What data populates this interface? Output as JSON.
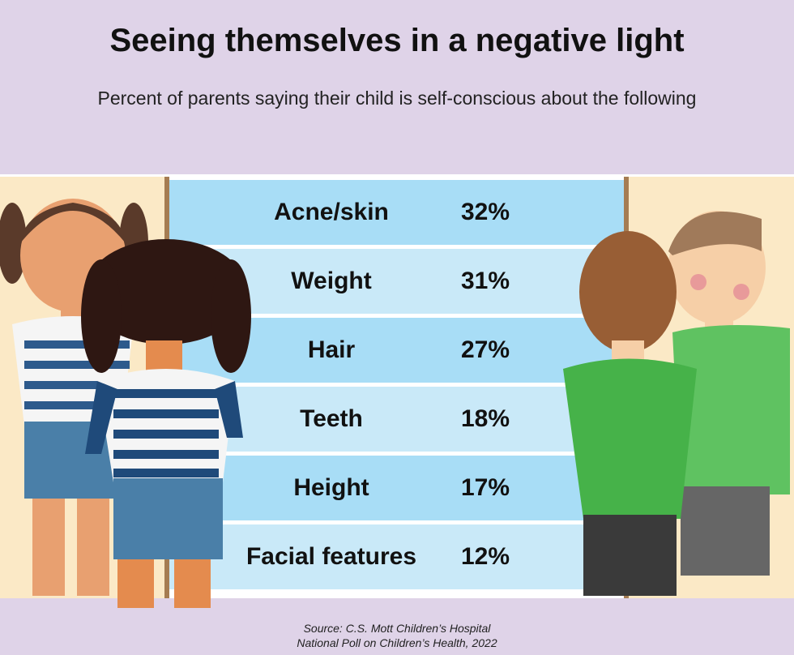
{
  "title": "Seeing themselves in a negative light",
  "subtitle": "Percent of parents saying their child is self-conscious about the following",
  "source_line1": "Source: C.S. Mott Children’s Hospital",
  "source_line2": "National Poll on Children’s Health, 2022",
  "colors": {
    "background": "#dfd3e8",
    "row_dark": "#a8ddf6",
    "row_light": "#c9e9f8",
    "mirror_frame": "#a57c52"
  },
  "chart_data": {
    "type": "table",
    "title": "Seeing themselves in a negative light",
    "subtitle": "Percent of parents saying their child is self-conscious about the following",
    "categories": [
      "Acne/skin",
      "Weight",
      "Hair",
      "Teeth",
      "Height",
      "Facial features"
    ],
    "values": [
      32,
      31,
      27,
      18,
      17,
      12
    ],
    "labels": [
      "32%",
      "31%",
      "27%",
      "18%",
      "17%",
      "12%"
    ]
  }
}
